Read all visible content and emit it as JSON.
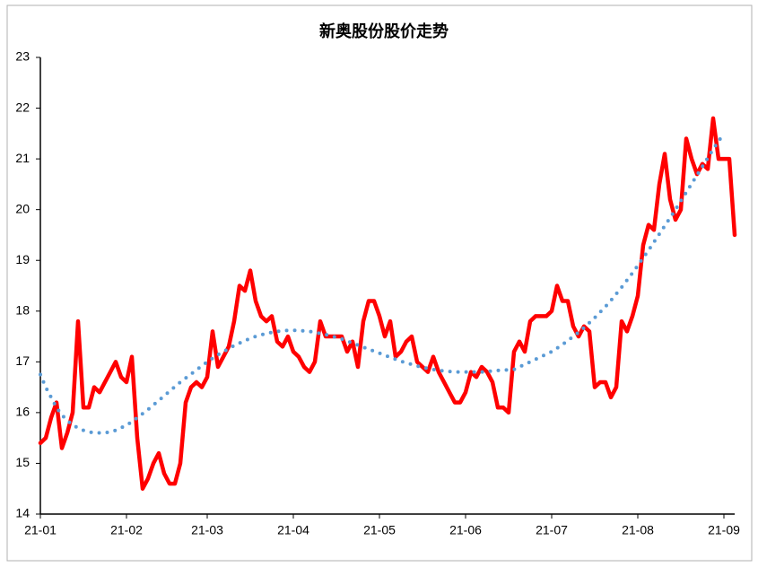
{
  "chart_data": {
    "type": "line",
    "title": "新奥股份股价走势",
    "categories": [
      "21-01",
      null,
      null,
      null,
      null,
      null,
      null,
      null,
      null,
      null,
      null,
      null,
      null,
      null,
      null,
      null,
      "21-02",
      null,
      null,
      null,
      null,
      null,
      null,
      null,
      null,
      null,
      null,
      null,
      null,
      null,
      null,
      "21-03",
      null,
      null,
      null,
      null,
      null,
      null,
      null,
      null,
      null,
      null,
      null,
      null,
      null,
      null,
      null,
      "21-04",
      null,
      null,
      null,
      null,
      null,
      null,
      null,
      null,
      null,
      null,
      null,
      null,
      null,
      null,
      null,
      "21-05",
      null,
      null,
      null,
      null,
      null,
      null,
      null,
      null,
      null,
      null,
      null,
      null,
      null,
      null,
      null,
      "21-06",
      null,
      null,
      null,
      null,
      null,
      null,
      null,
      null,
      null,
      null,
      null,
      null,
      null,
      null,
      null,
      "21-07",
      null,
      null,
      null,
      null,
      null,
      null,
      null,
      null,
      null,
      null,
      null,
      null,
      null,
      null,
      null,
      "21-08",
      null,
      null,
      null,
      null,
      null,
      null,
      null,
      null,
      null,
      null,
      null,
      null,
      null,
      null,
      null,
      "21-09",
      null,
      null
    ],
    "series": [
      {
        "color": "#ff0000",
        "style": "solid",
        "values": [
          15.4,
          15.5,
          15.9,
          16.2,
          15.3,
          15.6,
          16.0,
          17.8,
          16.1,
          16.1,
          16.5,
          16.4,
          16.6,
          16.8,
          17.0,
          16.7,
          16.6,
          17.1,
          15.5,
          14.5,
          14.7,
          15.0,
          15.2,
          14.8,
          14.6,
          14.6,
          15.0,
          16.2,
          16.5,
          16.6,
          16.5,
          16.7,
          17.6,
          16.9,
          17.1,
          17.3,
          17.8,
          18.5,
          18.4,
          18.8,
          18.2,
          17.9,
          17.8,
          17.9,
          17.4,
          17.3,
          17.5,
          17.2,
          17.1,
          16.9,
          16.8,
          17.0,
          17.8,
          17.5,
          17.5,
          17.5,
          17.5,
          17.2,
          17.4,
          16.9,
          17.8,
          18.2,
          18.2,
          17.9,
          17.5,
          17.8,
          17.1,
          17.2,
          17.4,
          17.5,
          17.0,
          16.9,
          16.8,
          17.1,
          16.8,
          16.6,
          16.4,
          16.2,
          16.2,
          16.4,
          16.8,
          16.7,
          16.9,
          16.8,
          16.6,
          16.1,
          16.1,
          16.0,
          17.2,
          17.4,
          17.2,
          17.8,
          17.9,
          17.9,
          17.9,
          18.0,
          18.5,
          18.2,
          18.2,
          17.7,
          17.5,
          17.7,
          17.6,
          16.5,
          16.6,
          16.6,
          16.3,
          16.5,
          17.8,
          17.6,
          17.9,
          18.3,
          19.3,
          19.7,
          19.6,
          20.5,
          21.1,
          20.2,
          19.8,
          20.0,
          21.4,
          21.0,
          20.7,
          20.9,
          20.8,
          21.8,
          21.0,
          21.0,
          21.0,
          19.5
        ]
      },
      {
        "color": "#5b9bd5",
        "style": "dotted",
        "values": [
          16.75,
          16.5,
          16.3,
          16.1,
          15.95,
          15.85,
          15.75,
          15.7,
          15.65,
          15.62,
          15.6,
          15.6,
          15.6,
          15.62,
          15.65,
          15.7,
          15.75,
          15.82,
          15.9,
          15.98,
          16.06,
          16.15,
          16.24,
          16.33,
          16.42,
          16.51,
          16.6,
          16.68,
          16.76,
          16.84,
          16.92,
          17.0,
          17.07,
          17.14,
          17.2,
          17.26,
          17.32,
          17.37,
          17.42,
          17.46,
          17.5,
          17.53,
          17.56,
          17.58,
          17.6,
          17.61,
          17.62,
          17.62,
          17.62,
          17.61,
          17.6,
          17.58,
          17.56,
          17.54,
          17.51,
          17.48,
          17.45,
          17.41,
          17.37,
          17.33,
          17.29,
          17.25,
          17.21,
          17.17,
          17.13,
          17.09,
          17.05,
          17.01,
          16.98,
          16.95,
          16.92,
          16.89,
          16.87,
          16.85,
          16.83,
          16.82,
          16.81,
          16.8,
          16.8,
          16.8,
          16.8,
          16.8,
          16.8,
          16.81,
          16.82,
          16.83,
          16.84,
          16.84,
          16.85,
          16.9,
          16.95,
          17.0,
          17.05,
          17.1,
          17.15,
          17.2,
          17.27,
          17.34,
          17.42,
          17.5,
          17.58,
          17.67,
          17.77,
          17.87,
          17.98,
          18.09,
          18.21,
          18.34,
          18.47,
          18.61,
          18.75,
          18.9,
          19.05,
          19.2,
          19.36,
          19.52,
          19.68,
          19.84,
          20.0,
          20.17,
          20.34,
          20.51,
          20.68,
          20.85,
          21.02,
          21.19,
          21.35,
          21.5,
          null,
          null
        ]
      }
    ],
    "ylim": [
      14,
      23
    ],
    "yticks": [
      14,
      15,
      16,
      17,
      18,
      19,
      20,
      21,
      22,
      23
    ],
    "grid": false
  }
}
